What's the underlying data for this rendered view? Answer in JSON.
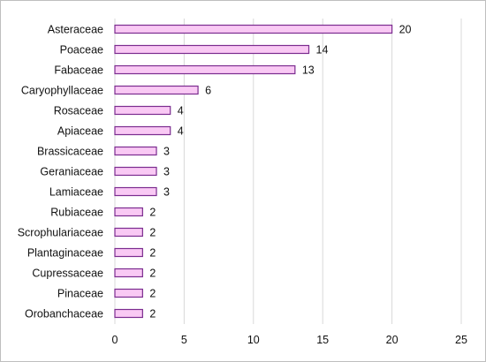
{
  "chart_data": {
    "type": "bar",
    "orientation": "horizontal",
    "categories": [
      "Asteraceae",
      "Poaceae",
      "Fabaceae",
      "Caryophyllaceae",
      "Rosaceae",
      "Apiaceae",
      "Brassicaceae",
      "Geraniaceae",
      "Lamiaceae",
      "Rubiaceae",
      "Scrophulariaceae",
      "Plantaginaceae",
      "Cupressaceae",
      "Pinaceae",
      "Orobanchaceae"
    ],
    "values": [
      20,
      14,
      13,
      6,
      4,
      4,
      3,
      3,
      3,
      2,
      2,
      2,
      2,
      2,
      2
    ],
    "data_labels": [
      "20",
      "14",
      "13",
      "6",
      "4",
      "4",
      "3",
      "3",
      "3",
      "2",
      "2",
      "2",
      "2",
      "2",
      "2"
    ],
    "xlim": [
      0,
      25
    ],
    "xticks": [
      "0",
      "5",
      "10",
      "15",
      "20",
      "25"
    ],
    "grid": "vertical",
    "legend": "none",
    "colors": {
      "bar_fill": "#f9c9f4",
      "bar_stroke": "#7b2c8f",
      "grid": "#d9d9d9"
    }
  }
}
